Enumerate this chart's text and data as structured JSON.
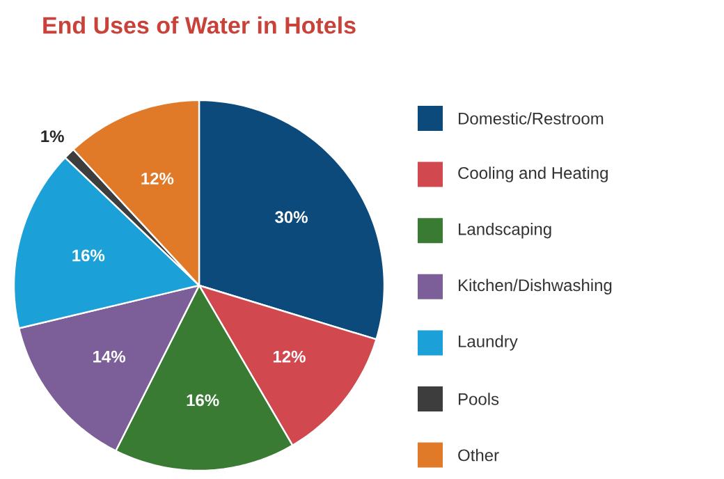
{
  "chart_data": {
    "type": "pie",
    "title": "End Uses of Water in Hotels",
    "categories": [
      "Domestic/Restroom",
      "Cooling and Heating",
      "Landscaping",
      "Kitchen/Dishwashing",
      "Laundry",
      "Pools",
      "Other"
    ],
    "values": [
      30,
      12,
      16,
      14,
      16,
      1,
      12
    ],
    "value_labels": [
      "30%",
      "12%",
      "16%",
      "14%",
      "16%",
      "1%",
      "12%"
    ],
    "colors": [
      "#0d4a7c",
      "#d1484f",
      "#3a7b34",
      "#7c5f98",
      "#1ba0d7",
      "#3d3d3d",
      "#e07a28"
    ],
    "legend": "right"
  }
}
